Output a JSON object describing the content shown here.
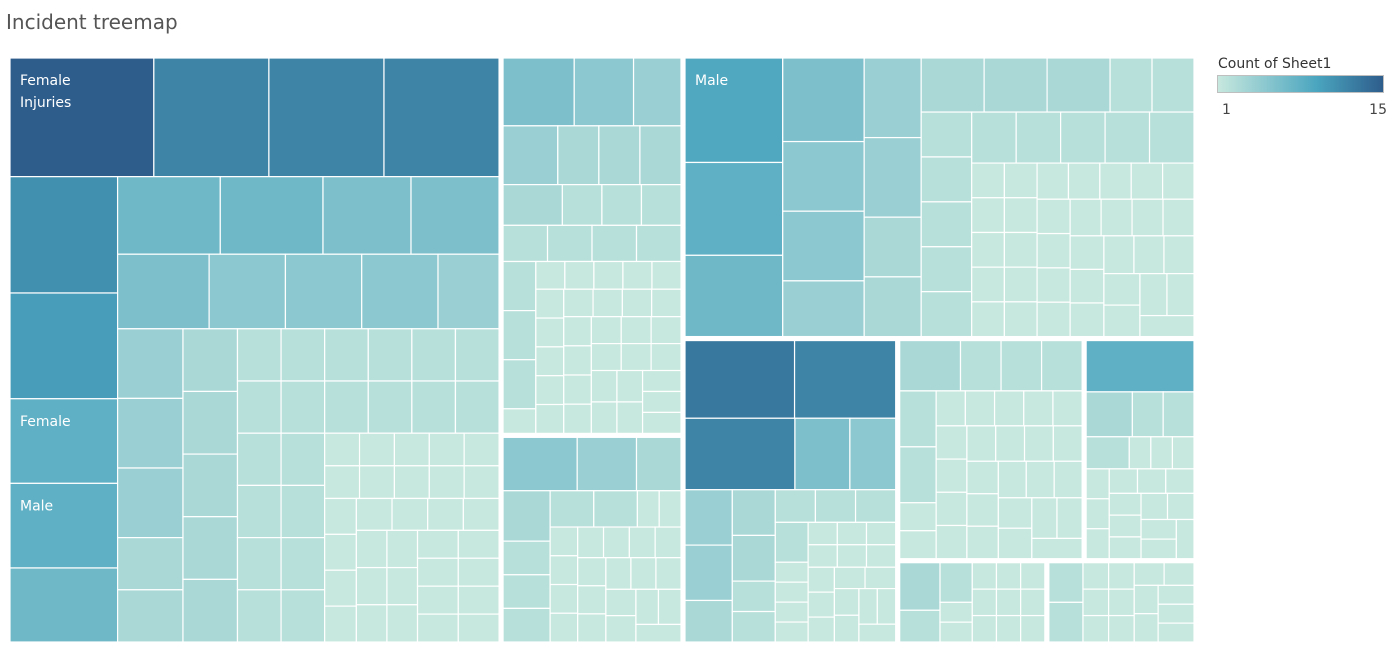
{
  "title": "Incident treemap",
  "legend": {
    "title": "Count of Sheet1",
    "min_label": "1",
    "max_label": "15",
    "color_low": "#c7e8de",
    "color_mid": "#4aa5bf",
    "color_high": "#2e5d8c"
  },
  "chart_data": {
    "type": "treemap",
    "measure": "Count of Sheet1",
    "color_range": [
      1,
      15
    ],
    "labeled_cells": [
      {
        "lines": [
          "Female",
          "Injuries"
        ],
        "value": 15
      },
      {
        "lines": [
          "Female"
        ],
        "value": 8
      },
      {
        "lines": [
          "Male"
        ],
        "value": 9
      },
      {
        "lines": [
          "Male"
        ],
        "value": 8
      }
    ],
    "groups": [
      {
        "value": 420,
        "leaves": [
          15,
          12,
          12,
          12,
          11,
          10,
          8,
          8,
          7,
          7,
          7,
          6,
          6,
          6,
          5,
          5,
          5,
          4,
          4,
          4,
          4,
          3,
          3,
          3,
          3,
          3,
          3,
          3,
          2,
          2,
          2,
          2,
          2,
          2,
          2,
          2,
          2,
          2,
          2,
          2,
          2,
          2,
          2,
          2,
          2,
          2,
          2,
          2,
          1,
          1,
          1,
          1,
          1,
          1,
          1,
          1,
          1,
          1,
          1,
          1,
          1,
          1,
          1,
          1,
          1,
          1,
          1,
          1,
          1,
          1,
          1,
          1,
          1,
          1,
          1,
          1,
          1,
          1,
          1,
          1
        ]
      },
      {
        "value": 100,
        "leaves": [
          6,
          5,
          4,
          4,
          3,
          3,
          3,
          3,
          2,
          2,
          2,
          2,
          2,
          2,
          2,
          2,
          2,
          2,
          1,
          1,
          1,
          1,
          1,
          1,
          1,
          1,
          1,
          1,
          1,
          1,
          1,
          1,
          1,
          1,
          1,
          1,
          1,
          1,
          1,
          1,
          1,
          1,
          1,
          1,
          1,
          1,
          1,
          1,
          1,
          1
        ]
      },
      {
        "value": 55,
        "leaves": [
          5,
          4,
          3,
          3,
          2,
          2,
          2,
          2,
          2,
          1,
          1,
          1,
          1,
          1,
          1,
          1,
          1,
          1,
          1,
          1,
          1,
          1,
          1,
          1,
          1,
          1,
          1,
          1,
          1,
          1
        ]
      },
      {
        "value": 210,
        "leaves": [
          9,
          8,
          7,
          6,
          5,
          5,
          4,
          4,
          4,
          3,
          3,
          3,
          3,
          3,
          2,
          2,
          2,
          2,
          2,
          2,
          2,
          2,
          2,
          2,
          2,
          2,
          1,
          1,
          1,
          1,
          1,
          1,
          1,
          1,
          1,
          1,
          1,
          1,
          1,
          1,
          1,
          1,
          1,
          1,
          1,
          1,
          1,
          1,
          1,
          1,
          1,
          1,
          1,
          1,
          1,
          1,
          1,
          1,
          1,
          1
        ]
      },
      {
        "value": 95,
        "leaves": [
          13,
          12,
          12,
          6,
          5,
          4,
          4,
          3,
          3,
          3,
          2,
          2,
          2,
          2,
          2,
          2,
          1,
          1,
          1,
          1,
          1,
          1,
          1,
          1,
          1,
          1,
          1,
          1,
          1,
          1,
          1,
          1,
          1,
          1,
          1,
          1
        ]
      },
      {
        "value": 60,
        "leaves": [
          3,
          2,
          2,
          2,
          2,
          2,
          1,
          1,
          1,
          1,
          1,
          1,
          1,
          1,
          1,
          1,
          1,
          1,
          1,
          1,
          1,
          1,
          1,
          1,
          1,
          1,
          1,
          1,
          1,
          1,
          1,
          1
        ]
      },
      {
        "value": 36,
        "leaves": [
          8,
          3,
          2,
          2,
          2,
          1,
          1,
          1,
          1,
          1,
          1,
          1,
          1,
          1,
          1,
          1,
          1,
          1,
          1,
          1,
          1,
          1
        ]
      },
      {
        "value": 18,
        "leaves": [
          3,
          2,
          2,
          1,
          1,
          1,
          1,
          1,
          1,
          1,
          1,
          1,
          1,
          1
        ]
      },
      {
        "value": 18,
        "leaves": [
          2,
          2,
          1,
          1,
          1,
          1,
          1,
          1,
          1,
          1,
          1,
          1,
          1,
          1,
          1
        ]
      }
    ]
  }
}
